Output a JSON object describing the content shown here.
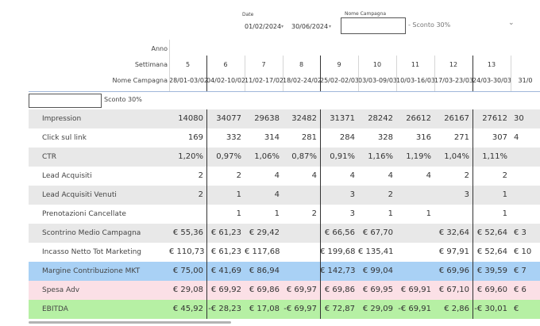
{
  "filters": {
    "date_label": "Date",
    "date_from": "01/02/2024",
    "date_to": "30/06/2024",
    "name_label": "Nome Campagna",
    "name_value": "",
    "dropdown_value": "- Sconto 30%"
  },
  "headers": {
    "anno": "Anno",
    "settimana": "Settimana",
    "nome_campagna": "Nome Campagna"
  },
  "columns": [
    {
      "week": "5",
      "range": "28/01-03/02"
    },
    {
      "week": "6",
      "range": "04/02-10/02"
    },
    {
      "week": "7",
      "range": "11/02-17/02"
    },
    {
      "week": "8",
      "range": "18/02-24/02"
    },
    {
      "week": "9",
      "range": "25/02-02/03"
    },
    {
      "week": "10",
      "range": "03/03-09/03"
    },
    {
      "week": "11",
      "range": "10/03-16/03"
    },
    {
      "week": "12",
      "range": "17/03-23/03"
    },
    {
      "week": "13",
      "range": "24/03-30/03"
    },
    {
      "week": "",
      "range": "31/0"
    }
  ],
  "campaign_filter": {
    "input_value": "",
    "label": "Sconto 30%"
  },
  "rows": [
    {
      "label": "Impression",
      "values": [
        "14080",
        "34077",
        "29638",
        "32482",
        "31371",
        "28242",
        "26612",
        "26167",
        "27612",
        "30"
      ]
    },
    {
      "label": "Click sul link",
      "values": [
        "169",
        "332",
        "314",
        "281",
        "284",
        "328",
        "316",
        "271",
        "307",
        "4"
      ]
    },
    {
      "label": "CTR",
      "values": [
        "1,20%",
        "0,97%",
        "1,06%",
        "0,87%",
        "0,91%",
        "1,16%",
        "1,19%",
        "1,04%",
        "1,11%",
        ""
      ]
    },
    {
      "label": "Lead Acquisiti",
      "values": [
        "2",
        "2",
        "4",
        "4",
        "4",
        "4",
        "4",
        "2",
        "2",
        ""
      ]
    },
    {
      "label": "Lead Acquisiti Venuti",
      "values": [
        "2",
        "1",
        "4",
        "",
        "3",
        "2",
        "",
        "3",
        "1",
        ""
      ]
    },
    {
      "label": "Prenotazioni Cancellate",
      "values": [
        "",
        "1",
        "1",
        "2",
        "3",
        "1",
        "1",
        "",
        "1",
        ""
      ]
    },
    {
      "label": "Scontrino Medio Campagna",
      "values": [
        "€ 55,36",
        "€ 61,23",
        "€ 29,42",
        "",
        "€ 66,56",
        "€ 67,70",
        "",
        "€ 32,64",
        "€ 52,64",
        "€ 3"
      ]
    },
    {
      "label": "Incasso Netto Tot Marketing",
      "values": [
        "€ 110,73",
        "€ 61,23",
        "€ 117,68",
        "",
        "€ 199,68",
        "€ 135,41",
        "",
        "€ 97,91",
        "€ 52,64",
        "€ 10"
      ]
    },
    {
      "label": "Margine Contribuzione MKT",
      "values": [
        "€ 75,00",
        "€ 41,69",
        "€ 86,94",
        "",
        "€ 142,73",
        "€ 99,04",
        "",
        "€ 69,96",
        "€ 39,59",
        "€ 7"
      ]
    },
    {
      "label": "Spesa Adv",
      "values": [
        "€ 29,08",
        "€ 69,92",
        "€ 69,86",
        "€ 69,97",
        "€ 69,86",
        "€ 69,95",
        "€ 69,91",
        "€ 67,10",
        "€ 69,60",
        "€ 6"
      ]
    },
    {
      "label": "EBITDA",
      "values": [
        "€ 45,92",
        "-€ 28,23",
        "€ 17,08",
        "-€ 69,97",
        "€ 72,87",
        "€ 29,09",
        "-€ 69,91",
        "€ 2,86",
        "-€ 30,01",
        "€"
      ]
    }
  ],
  "row_colors": [
    "#e8e8e8",
    "#ffffff",
    "#e8e8e8",
    "#ffffff",
    "#e8e8e8",
    "#ffffff",
    "#e8e8e8",
    "#ffffff",
    "#a9d1f5",
    "#fbe0e6",
    "#b6f0a4"
  ]
}
